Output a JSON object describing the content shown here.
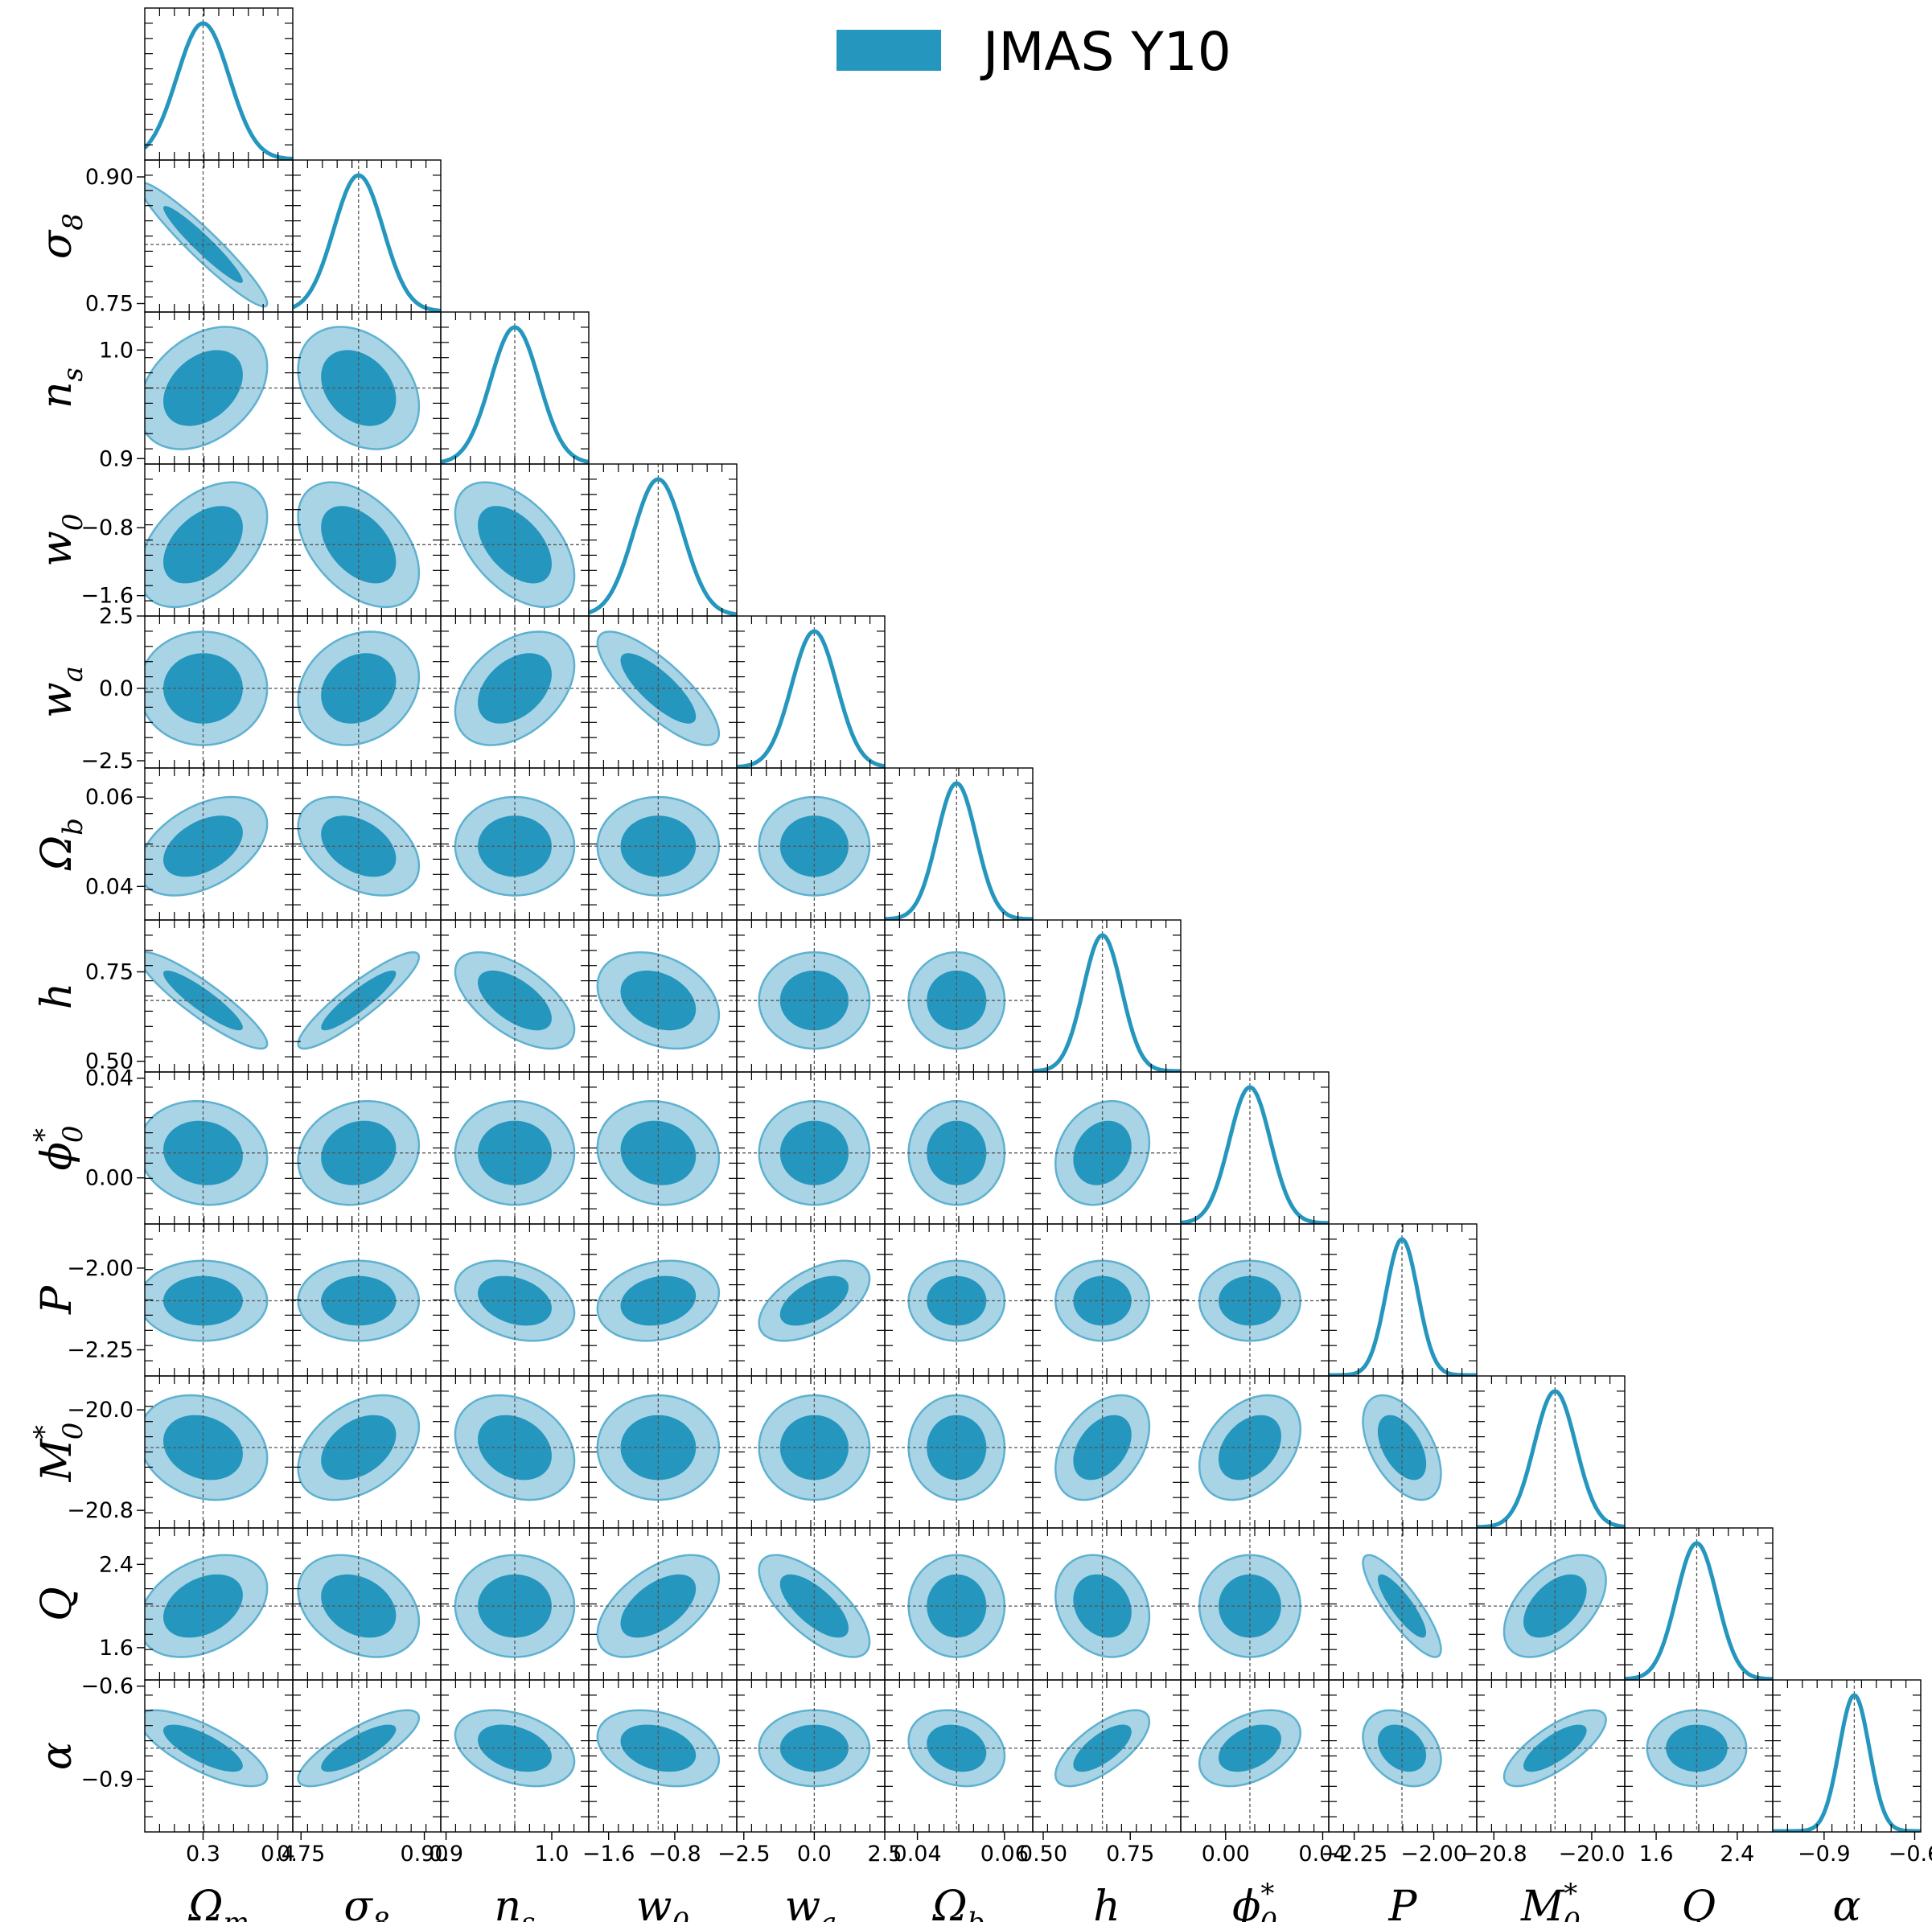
{
  "colors": {
    "main": "#2596be",
    "contour95": "#a8d4e6",
    "contour95_edge": "#5fb1d0",
    "contour68": "#2596be",
    "frame": "#000000",
    "ref_line": "#555555"
  },
  "chart_data": {
    "type": "corner",
    "legend": {
      "label": "JMAS Y10",
      "placement": "top-center"
    },
    "contour_levels": [
      "68%",
      "95%"
    ],
    "grid": false,
    "parameters": [
      {
        "name": "Omega_m",
        "label_main": "Ω",
        "label_sub": "m",
        "label_sup": "",
        "fiducial": 0.3,
        "sigma": 0.035,
        "range": [
          0.222,
          0.42
        ],
        "ticks": [
          {
            "v": 0.3,
            "t": "0.3"
          },
          {
            "v": 0.4,
            "t": "0.4"
          }
        ],
        "show_y_axis": false
      },
      {
        "name": "sigma_8",
        "label_main": "σ",
        "label_sub": "8",
        "label_sup": "",
        "fiducial": 0.82,
        "sigma": 0.03,
        "range": [
          0.74,
          0.92
        ],
        "ticks": [
          {
            "v": 0.75,
            "t": "0.75"
          },
          {
            "v": 0.9,
            "t": "0.90"
          }
        ],
        "show_y_axis": true
      },
      {
        "name": "n_s",
        "label_main": "n",
        "label_sub": "s",
        "label_sup": "",
        "fiducial": 0.965,
        "sigma": 0.023,
        "range": [
          0.895,
          1.035
        ],
        "ticks": [
          {
            "v": 0.9,
            "t": "0.9"
          },
          {
            "v": 1.0,
            "t": "1.0"
          }
        ],
        "show_y_axis": true
      },
      {
        "name": "w_0",
        "label_main": "w",
        "label_sub": "0",
        "label_sup": "",
        "fiducial": -1.0,
        "sigma": 0.3,
        "range": [
          -1.84,
          -0.05
        ],
        "ticks": [
          {
            "v": -1.6,
            "t": "−1.6"
          },
          {
            "v": -0.8,
            "t": "−0.8"
          }
        ],
        "show_y_axis": true
      },
      {
        "name": "w_a",
        "label_main": "w",
        "label_sub": "a",
        "label_sup": "",
        "fiducial": 0.0,
        "sigma": 0.8,
        "range": [
          -2.75,
          2.5
        ],
        "ticks": [
          {
            "v": -2.5,
            "t": "−2.5"
          },
          {
            "v": 0.0,
            "t": "0.0"
          },
          {
            "v": 2.5,
            "t": "2.5"
          }
        ],
        "show_y_axis": true
      },
      {
        "name": "Omega_b",
        "label_main": "Ω",
        "label_sub": "b",
        "label_sup": "",
        "fiducial": 0.049,
        "sigma": 0.0045,
        "range": [
          0.0325,
          0.0665
        ],
        "ticks": [
          {
            "v": 0.04,
            "t": "0.04"
          },
          {
            "v": 0.06,
            "t": "0.06"
          }
        ],
        "show_y_axis": true
      },
      {
        "name": "h",
        "label_main": "h",
        "label_sub": "",
        "label_sup": "",
        "fiducial": 0.67,
        "sigma": 0.055,
        "range": [
          0.47,
          0.895
        ],
        "ticks": [
          {
            "v": 0.5,
            "t": "0.50"
          },
          {
            "v": 0.75,
            "t": "0.75"
          }
        ],
        "show_y_axis": true
      },
      {
        "name": "phi_0_star",
        "label_main": "ϕ",
        "label_sub": "0",
        "label_sup": "*",
        "fiducial": 0.01,
        "sigma": 0.0085,
        "range": [
          -0.0185,
          0.0425
        ],
        "ticks": [
          {
            "v": 0.0,
            "t": "0.00"
          },
          {
            "v": 0.04,
            "t": "0.04"
          }
        ],
        "show_y_axis": true
      },
      {
        "name": "P",
        "label_main": "P",
        "label_sub": "",
        "label_sup": "",
        "fiducial": -2.1,
        "sigma": 0.05,
        "range": [
          -2.33,
          -1.865
        ],
        "ticks": [
          {
            "v": -2.25,
            "t": "−2.25"
          },
          {
            "v": -2.0,
            "t": "−2.00"
          }
        ],
        "show_y_axis": true
      },
      {
        "name": "M_0_star",
        "label_main": "M",
        "label_sub": "0",
        "label_sup": "*",
        "fiducial": -20.3,
        "sigma": 0.17,
        "range": [
          -20.94,
          -19.73
        ],
        "ticks": [
          {
            "v": -20.8,
            "t": "−20.8"
          },
          {
            "v": -20.0,
            "t": "−20.0"
          }
        ],
        "show_y_axis": true
      },
      {
        "name": "Q",
        "label_main": "Q",
        "label_sub": "",
        "label_sup": "",
        "fiducial": 2.0,
        "sigma": 0.2,
        "range": [
          1.29,
          2.75
        ],
        "ticks": [
          {
            "v": 1.6,
            "t": "1.6"
          },
          {
            "v": 2.4,
            "t": "2.4"
          }
        ],
        "show_y_axis": true
      },
      {
        "name": "alpha",
        "label_main": "α",
        "label_sub": "",
        "label_sup": "",
        "fiducial": -0.8,
        "sigma": 0.05,
        "range": [
          -1.07,
          -0.58
        ],
        "ticks": [
          {
            "v": -0.9,
            "t": "−0.9"
          },
          {
            "v": -0.6,
            "t": "−0.6"
          }
        ],
        "show_y_axis": true
      }
    ],
    "correlations": {
      "1-0": -0.95,
      "2-0": 0.35,
      "2-1": -0.3,
      "3-0": 0.45,
      "3-1": -0.45,
      "3-2": -0.5,
      "4-0": 0.0,
      "4-1": 0.2,
      "4-2": 0.4,
      "4-3": -0.8,
      "5-0": 0.45,
      "5-1": -0.4,
      "5-2": 0.0,
      "5-3": 0.0,
      "5-4": 0.0,
      "6-0": -0.9,
      "6-1": 0.9,
      "6-2": -0.6,
      "6-3": -0.3,
      "6-4": 0.0,
      "6-5": 0.0,
      "7-0": -0.1,
      "7-1": 0.15,
      "7-2": 0.0,
      "7-3": -0.1,
      "7-4": 0.0,
      "7-5": 0.0,
      "7-6": 0.2,
      "8-0": 0.0,
      "8-1": 0.0,
      "8-2": -0.3,
      "8-3": 0.2,
      "8-4": 0.55,
      "8-5": 0.0,
      "8-6": 0.0,
      "8-7": 0.0,
      "9-0": -0.2,
      "9-1": 0.4,
      "9-2": -0.25,
      "9-3": 0.0,
      "9-4": 0.0,
      "9-5": 0.0,
      "9-6": 0.4,
      "9-7": 0.35,
      "9-8": -0.5,
      "10-0": 0.35,
      "10-1": -0.3,
      "10-2": 0.0,
      "10-3": 0.55,
      "10-4": -0.7,
      "10-5": 0.0,
      "10-6": -0.2,
      "10-7": 0.0,
      "10-8": -0.85,
      "10-9": 0.5,
      "11-0": -0.75,
      "11-1": 0.8,
      "11-2": -0.35,
      "11-3": -0.3,
      "11-4": 0.0,
      "11-5": -0.2,
      "11-6": 0.7,
      "11-7": 0.4,
      "11-8": -0.3,
      "11-9": 0.75,
      "11-10": 0.0
    }
  }
}
